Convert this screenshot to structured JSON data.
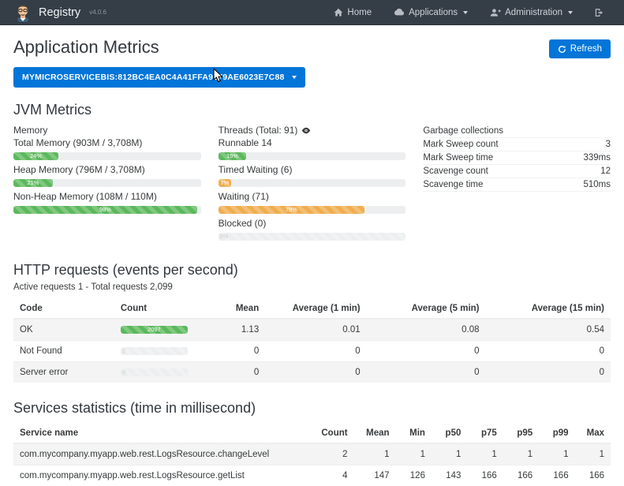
{
  "colors": {
    "accent": "#0275d8",
    "success": "#5cb85c",
    "warning": "#f0ad4e",
    "navbar": "#353d47"
  },
  "navbar": {
    "brand": "Registry",
    "version": "v4.0.6",
    "items": [
      {
        "label": "Home",
        "icon": "home-icon"
      },
      {
        "label": "Applications",
        "icon": "cloud-icon"
      },
      {
        "label": "Administration",
        "icon": "user-plus-icon"
      }
    ],
    "signout_icon": "sign-out-icon"
  },
  "page": {
    "title": "Application Metrics",
    "refresh_label": "Refresh",
    "instance_selector": "MYMICROSERVICEBIS:812BC4EA0C4A41FFA9179AE6023E7C88"
  },
  "jvm": {
    "heading": "JVM Metrics",
    "memory": {
      "title": "Memory",
      "bars": [
        {
          "label": "Total Memory (903M / 3,708M)",
          "percent": 24,
          "text": "24%"
        },
        {
          "label": "Heap Memory (796M / 3,708M)",
          "percent": 21,
          "text": "21%"
        },
        {
          "label": "Non-Heap Memory (108M / 110M)",
          "percent": 98,
          "text": "98%"
        }
      ]
    },
    "threads": {
      "title": "Threads (Total: 91)",
      "bars": [
        {
          "label": "Runnable 14",
          "percent": 15,
          "text": "15%"
        },
        {
          "label": "Timed Waiting (6)",
          "percent": 7,
          "text": "7%"
        },
        {
          "label": "Waiting (71)",
          "percent": 78,
          "text": "78%"
        },
        {
          "label": "Blocked (0)",
          "percent": 0,
          "text": "0%"
        }
      ]
    },
    "garbage": {
      "title": "Garbage collections",
      "rows": [
        {
          "label": "Mark Sweep count",
          "value": "3"
        },
        {
          "label": "Mark Sweep time",
          "value": "339ms"
        },
        {
          "label": "Scavenge count",
          "value": "12"
        },
        {
          "label": "Scavenge time",
          "value": "510ms"
        }
      ]
    }
  },
  "http": {
    "heading": "HTTP requests (events per second)",
    "subtitle": "Active requests 1 - Total requests 2,099",
    "headers": {
      "code": "Code",
      "count": "Count",
      "mean": "Mean",
      "avg1": "Average (1 min)",
      "avg5": "Average (5 min)",
      "avg15": "Average (15 min)"
    },
    "rows": [
      {
        "code": "OK",
        "count": "2097",
        "count_percent": 100,
        "mean": "1.13",
        "avg1": "0.01",
        "avg5": "0.08",
        "avg15": "0.54"
      },
      {
        "code": "Not Found",
        "count": "2",
        "count_percent": 0,
        "mean": "0",
        "avg1": "0",
        "avg5": "0",
        "avg15": "0"
      },
      {
        "code": "Server error",
        "count": "0",
        "count_percent": 0,
        "mean": "0",
        "avg1": "0",
        "avg5": "0",
        "avg15": "0"
      }
    ]
  },
  "services": {
    "heading": "Services statistics (time in millisecond)",
    "headers": {
      "name": "Service name",
      "count": "Count",
      "mean": "Mean",
      "min": "Min",
      "p50": "p50",
      "p75": "p75",
      "p95": "p95",
      "p99": "p99",
      "max": "Max"
    },
    "rows": [
      {
        "name": "com.mycompany.myapp.web.rest.LogsResource.changeLevel",
        "count": "2",
        "mean": "1",
        "min": "1",
        "p50": "1",
        "p75": "1",
        "p95": "1",
        "p99": "1",
        "max": "1"
      },
      {
        "name": "com.mycompany.myapp.web.rest.LogsResource.getList",
        "count": "4",
        "mean": "147",
        "min": "126",
        "p50": "143",
        "p75": "166",
        "p95": "166",
        "p99": "166",
        "max": "166"
      }
    ]
  }
}
